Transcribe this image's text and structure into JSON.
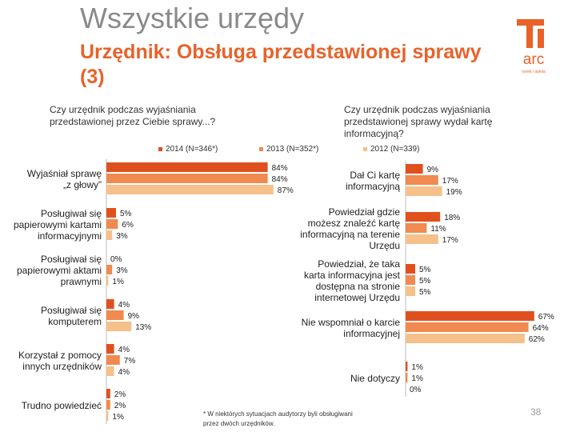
{
  "title": "Wszystkie urzędy",
  "subtitle": "Urzędnik: Obsługa przedstawionej sprawy (3)",
  "logo": {
    "text": "arc",
    "subtext": "rynek i opinia"
  },
  "page_number": "38",
  "footnote": "* W niektórych sytuacjach audytorzy byli obsługiwani przez dwóch urzędników.",
  "colors": {
    "series_2014": "#e0501f",
    "series_2013": "#f08a50",
    "series_2012": "#f5c08a",
    "accent": "#e8622a"
  },
  "legend": [
    {
      "label": "2014 (N=346*)",
      "color": "#e0501f"
    },
    {
      "label": "2013 (N=352*)",
      "color": "#f08a50"
    },
    {
      "label": "2012 (N=339)",
      "color": "#f5c08a"
    }
  ],
  "chart_data": [
    {
      "type": "bar",
      "orientation": "horizontal",
      "title": "Czy urzędnik podczas wyjaśniania przedstawionej przez Ciebie sprawy...?",
      "categories": [
        "Wyjaśniał sprawę „z głowy”",
        "Posługiwał się papierowymi kartami informacyjnymi",
        "Posługiwał się papierowymi aktami prawnymi",
        "Posługiwał się komputerem",
        "Korzystał z pomocy innych urzędników",
        "Trudno powiedzieć"
      ],
      "series": [
        {
          "name": "2014 (N=346*)",
          "values": [
            84,
            5,
            0,
            4,
            4,
            2
          ]
        },
        {
          "name": "2013 (N=352*)",
          "values": [
            84,
            6,
            3,
            9,
            7,
            2
          ]
        },
        {
          "name": "2012 (N=339)",
          "values": [
            87,
            3,
            1,
            13,
            4,
            1
          ]
        }
      ],
      "value_labels": [
        [
          "84%",
          "5%",
          "0%",
          "4%",
          "4%",
          "2%"
        ],
        [
          "84%",
          "6%",
          "3%",
          "9%",
          "7%",
          "2%"
        ],
        [
          "87%",
          "3%",
          "1%",
          "13%",
          "4%",
          "1%"
        ]
      ],
      "xlim": [
        0,
        100
      ]
    },
    {
      "type": "bar",
      "orientation": "horizontal",
      "title": "Czy urzędnik podczas wyjaśniania przedstawionej sprawy wydał kartę informacyjną?",
      "categories": [
        "Dał Ci kartę informacyjną",
        "Powiedział gdzie możesz znaleźć kartę informacyjną na terenie Urzędu",
        "Powiedział, że taka karta informacyjna jest dostępna na stronie internetowej Urzędu",
        "Nie wspomniał o karcie informacyjnej",
        "Nie dotyczy"
      ],
      "series": [
        {
          "name": "2014 (N=346*)",
          "values": [
            9,
            18,
            5,
            67,
            1
          ]
        },
        {
          "name": "2013 (N=352*)",
          "values": [
            17,
            11,
            5,
            64,
            1
          ]
        },
        {
          "name": "2012 (N=339)",
          "values": [
            19,
            17,
            5,
            62,
            0
          ]
        }
      ],
      "value_labels": [
        [
          "9%",
          "18%",
          "5%",
          "67%",
          "1%"
        ],
        [
          "17%",
          "11%",
          "5%",
          "64%",
          "1%"
        ],
        [
          "19%",
          "17%",
          "5%",
          "62%",
          "0%"
        ]
      ],
      "xlim": [
        0,
        100
      ]
    }
  ]
}
